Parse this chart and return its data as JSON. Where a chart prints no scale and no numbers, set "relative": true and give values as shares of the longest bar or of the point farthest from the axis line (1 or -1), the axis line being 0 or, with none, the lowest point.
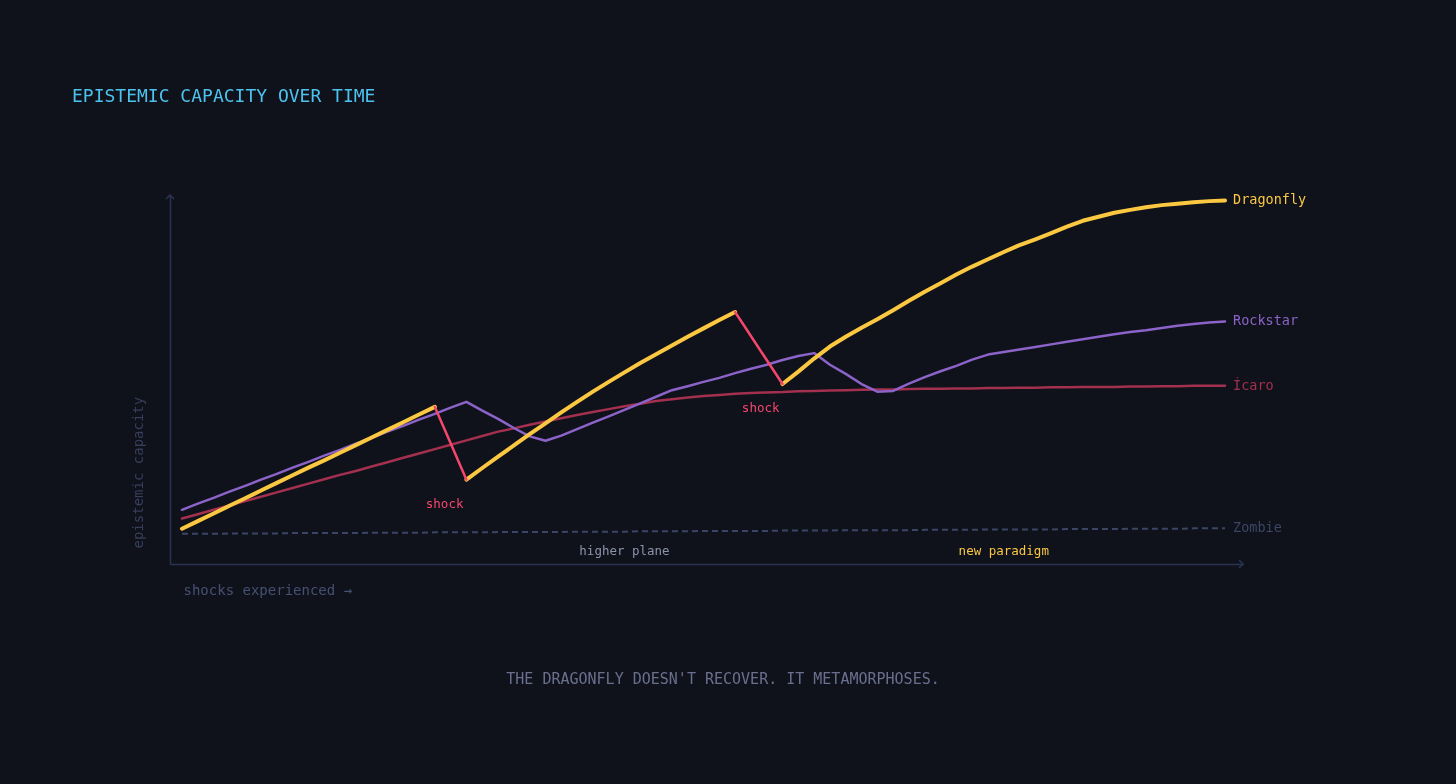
{
  "chart_data": {
    "type": "line",
    "title": "EPISTEMIC CAPACITY OVER TIME",
    "xlabel": "shocks experienced →",
    "ylabel": "epistemic capacity",
    "relative": true,
    "categories": [
      null,
      null,
      null,
      null,
      null,
      null,
      null,
      null,
      null,
      null,
      null,
      null,
      null,
      null,
      null,
      null,
      null,
      null,
      null,
      null,
      null,
      null,
      null,
      null,
      null,
      null,
      null,
      null,
      null,
      null,
      null,
      null,
      null,
      null,
      null,
      null,
      null,
      null,
      null,
      null,
      null,
      null,
      null,
      null,
      null,
      null,
      null,
      null,
      null,
      null,
      null,
      null,
      null,
      null,
      null,
      null,
      null,
      null,
      null,
      null,
      null,
      null,
      null,
      null,
      null,
      null,
      null
    ],
    "series": [
      {
        "name": "Zombie",
        "color": "#3b4666",
        "line_style": "dashed",
        "values": [
          0.083,
          0.083,
          0.083,
          0.084,
          0.084,
          0.084,
          0.084,
          0.085,
          0.085,
          0.085,
          0.085,
          0.085,
          0.086,
          0.086,
          0.086,
          0.086,
          0.087,
          0.087,
          0.087,
          0.087,
          0.088,
          0.088,
          0.088,
          0.088,
          0.088,
          0.089,
          0.089,
          0.089,
          0.089,
          0.09,
          0.09,
          0.09,
          0.09,
          0.091,
          0.091,
          0.091,
          0.091,
          0.091,
          0.092,
          0.092,
          0.092,
          0.092,
          0.093,
          0.093,
          0.093,
          0.093,
          0.093,
          0.094,
          0.094,
          0.094,
          0.094,
          0.095,
          0.095,
          0.095,
          0.095,
          0.095,
          0.096,
          0.096,
          0.096,
          0.096,
          0.097,
          0.097,
          0.097,
          0.097,
          0.098,
          0.098,
          0.098
        ]
      },
      {
        "name": "Ícaro",
        "color": "#a3304f",
        "values": [
          0.125,
          0.137,
          0.149,
          0.161,
          0.173,
          0.185,
          0.197,
          0.209,
          0.221,
          0.233,
          0.245,
          0.256,
          0.268,
          0.28,
          0.292,
          0.304,
          0.316,
          0.328,
          0.34,
          0.352,
          0.364,
          0.373,
          0.383,
          0.392,
          0.401,
          0.41,
          0.418,
          0.426,
          0.434,
          0.441,
          0.448,
          0.453,
          0.458,
          0.462,
          0.465,
          0.468,
          0.47,
          0.472,
          0.473,
          0.475,
          0.476,
          0.477,
          0.478,
          0.479,
          0.48,
          0.48,
          0.481,
          0.482,
          0.482,
          0.483,
          0.483,
          0.484,
          0.484,
          0.485,
          0.485,
          0.486,
          0.486,
          0.487,
          0.487,
          0.487,
          0.488,
          0.488,
          0.489,
          0.489,
          0.49,
          0.49,
          0.49
        ]
      },
      {
        "name": "Rockstar",
        "color": "#8b63c9",
        "values": [
          0.149,
          0.166,
          0.182,
          0.199,
          0.215,
          0.232,
          0.248,
          0.265,
          0.281,
          0.298,
          0.314,
          0.331,
          0.347,
          0.364,
          0.38,
          0.397,
          0.413,
          0.43,
          0.446,
          0.422,
          0.399,
          0.374,
          0.351,
          0.339,
          0.353,
          0.371,
          0.389,
          0.406,
          0.424,
          0.442,
          0.46,
          0.478,
          0.489,
          0.501,
          0.512,
          0.525,
          0.537,
          0.548,
          0.561,
          0.572,
          0.58,
          0.548,
          0.523,
          0.495,
          0.474,
          0.476,
          0.496,
          0.514,
          0.53,
          0.545,
          0.562,
          0.576,
          0.583,
          0.59,
          0.597,
          0.604,
          0.611,
          0.618,
          0.625,
          0.632,
          0.638,
          0.643,
          0.649,
          0.655,
          0.66,
          0.664,
          0.667
        ]
      },
      {
        "name": "Dragonfly",
        "color": "#fcc842",
        "values": [
          0.097,
          0.118,
          0.139,
          0.16,
          0.181,
          0.202,
          0.223,
          0.244,
          0.265,
          0.285,
          0.306,
          0.327,
          0.348,
          0.369,
          0.39,
          0.411,
          0.432,
          null,
          0.232,
          0.264,
          0.295,
          0.326,
          0.357,
          0.387,
          0.417,
          0.446,
          0.474,
          0.501,
          0.527,
          0.553,
          0.577,
          0.601,
          0.625,
          0.648,
          0.671,
          0.693,
          null,
          null,
          0.495,
          0.529,
          0.565,
          0.598,
          0.625,
          0.65,
          0.673,
          0.698,
          0.724,
          0.749,
          0.772,
          0.796,
          0.818,
          0.838,
          0.858,
          0.877,
          0.893,
          0.91,
          0.928,
          0.944,
          0.955,
          0.966,
          0.974,
          0.981,
          0.987,
          0.991,
          0.995,
          0.998,
          1.0
        ]
      },
      {
        "color": "#f5476d",
        "values": [
          null,
          null,
          null,
          null,
          null,
          null,
          null,
          null,
          null,
          null,
          null,
          null,
          null,
          null,
          null,
          null,
          0.432,
          0.332,
          0.232,
          null,
          null,
          null,
          null,
          null,
          null,
          null,
          null,
          null,
          null,
          null,
          null,
          null,
          null,
          null,
          null,
          0.693,
          0.627,
          0.561,
          0.495,
          null,
          null,
          null,
          null,
          null,
          null,
          null,
          null,
          null,
          null,
          null,
          null,
          null,
          null,
          null,
          null,
          null,
          null,
          null,
          null,
          null,
          null,
          null,
          null,
          null,
          null,
          null,
          null
        ]
      }
    ],
    "annotations": [
      "shock",
      "shock",
      "higher plane",
      "new paradigm",
      "THE DRAGONFLY DOESN'T RECOVER. IT METAMORPHOSES."
    ]
  }
}
